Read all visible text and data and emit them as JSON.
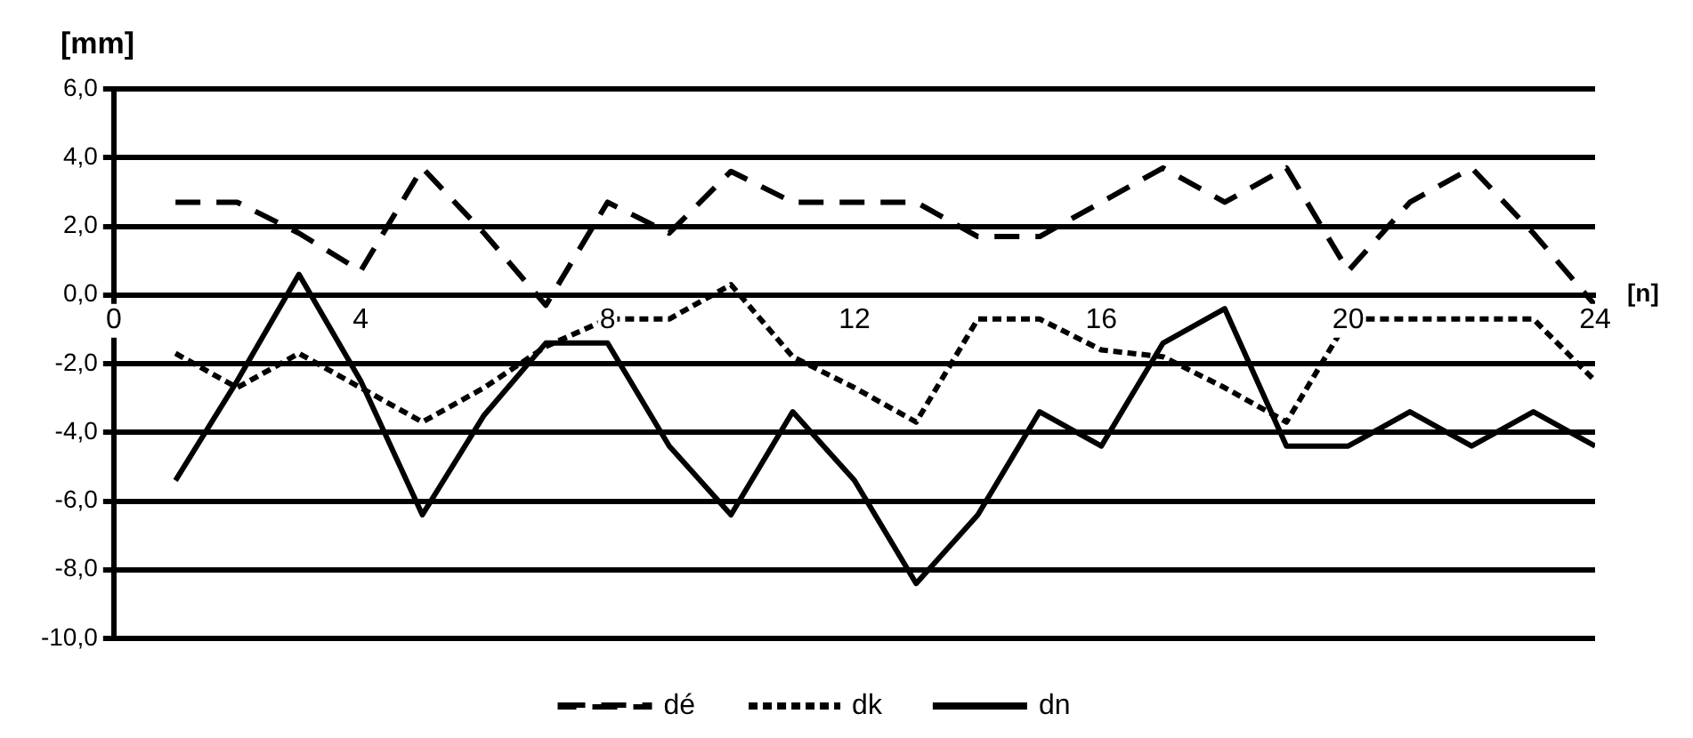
{
  "chart_data": {
    "type": "line",
    "xlabel": "[n]",
    "ylabel": "[mm]",
    "x": [
      1,
      2,
      3,
      4,
      5,
      6,
      7,
      8,
      9,
      10,
      11,
      12,
      13,
      14,
      15,
      16,
      17,
      18,
      19,
      20,
      21,
      22,
      23,
      24
    ],
    "series": [
      {
        "name": "dé",
        "color": "#000000",
        "line_style": "dashed",
        "values": [
          2.7,
          2.7,
          1.8,
          0.7,
          3.7,
          1.8,
          -0.3,
          2.7,
          1.8,
          3.6,
          2.7,
          2.7,
          2.7,
          1.7,
          1.7,
          2.7,
          3.7,
          2.7,
          3.7,
          0.7,
          2.7,
          3.7,
          1.8,
          -0.3
        ]
      },
      {
        "name": "dk",
        "color": "#000000",
        "line_style": "dotted",
        "values": [
          -1.7,
          -2.7,
          -1.7,
          -2.7,
          -3.7,
          -2.7,
          -1.5,
          -0.7,
          -0.7,
          0.3,
          -1.8,
          -2.7,
          -3.7,
          -0.7,
          -0.7,
          -1.6,
          -1.8,
          -2.7,
          -3.7,
          -0.7,
          -0.7,
          -0.7,
          -0.7,
          -2.5
        ]
      },
      {
        "name": "dn",
        "color": "#000000",
        "line_style": "solid",
        "values": [
          -5.4,
          -2.5,
          0.6,
          -2.5,
          -6.4,
          -3.5,
          -1.4,
          -1.4,
          -4.4,
          -6.4,
          -3.4,
          -5.4,
          -8.4,
          -6.4,
          -3.4,
          -4.4,
          -1.4,
          -0.4,
          -4.4,
          -4.4,
          -3.4,
          -4.4,
          -3.4,
          -4.4
        ]
      }
    ],
    "xlim": [
      0,
      24
    ],
    "xticks": [
      0,
      4,
      8,
      12,
      16,
      20,
      24
    ],
    "ylim": [
      -10,
      6
    ],
    "yticks": [
      {
        "value": -10,
        "label": "-10,0"
      },
      {
        "value": -8,
        "label": "-8,0"
      },
      {
        "value": -6,
        "label": "-6,0"
      },
      {
        "value": -4,
        "label": "-4,0"
      },
      {
        "value": -2,
        "label": "-2,0"
      },
      {
        "value": 0,
        "label": "0,0"
      },
      {
        "value": 2,
        "label": "2,0"
      },
      {
        "value": 4,
        "label": "4,0"
      },
      {
        "value": 6,
        "label": "6,0"
      }
    ],
    "grid": "y",
    "legend": "bottom",
    "marker": "none"
  }
}
